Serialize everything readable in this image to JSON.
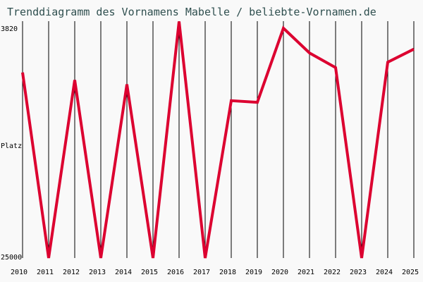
{
  "title": "Trenddiagramm des Vornamens Mabelle / beliebte-Vornamen.de",
  "axis": {
    "y_top_label": "3820",
    "y_mid_label": "Platz",
    "y_bottom_label": "25000"
  },
  "colors": {
    "line": "#dc0030",
    "grid": "#000000",
    "background": "#f9f9f9",
    "title": "#2f4f4f"
  },
  "chart_data": {
    "type": "line",
    "title": "Trenddiagramm des Vornamens Mabelle / beliebte-Vornamen.de",
    "xlabel": "",
    "ylabel": "Platz",
    "y_inverted": true,
    "ylim": [
      25000,
      3820
    ],
    "categories": [
      "2010",
      "2011",
      "2012",
      "2013",
      "2014",
      "2015",
      "2016",
      "2017",
      "2018",
      "2019",
      "2020",
      "2021",
      "2022",
      "2023",
      "2024",
      "2025"
    ],
    "series": [
      {
        "name": "Mabelle",
        "values": [
          7900,
          25000,
          8600,
          25000,
          9000,
          25000,
          3200,
          25000,
          10500,
          10650,
          3820,
          6100,
          7450,
          25000,
          6950,
          5750
        ]
      }
    ],
    "grid": "vertical",
    "legend": "none"
  }
}
